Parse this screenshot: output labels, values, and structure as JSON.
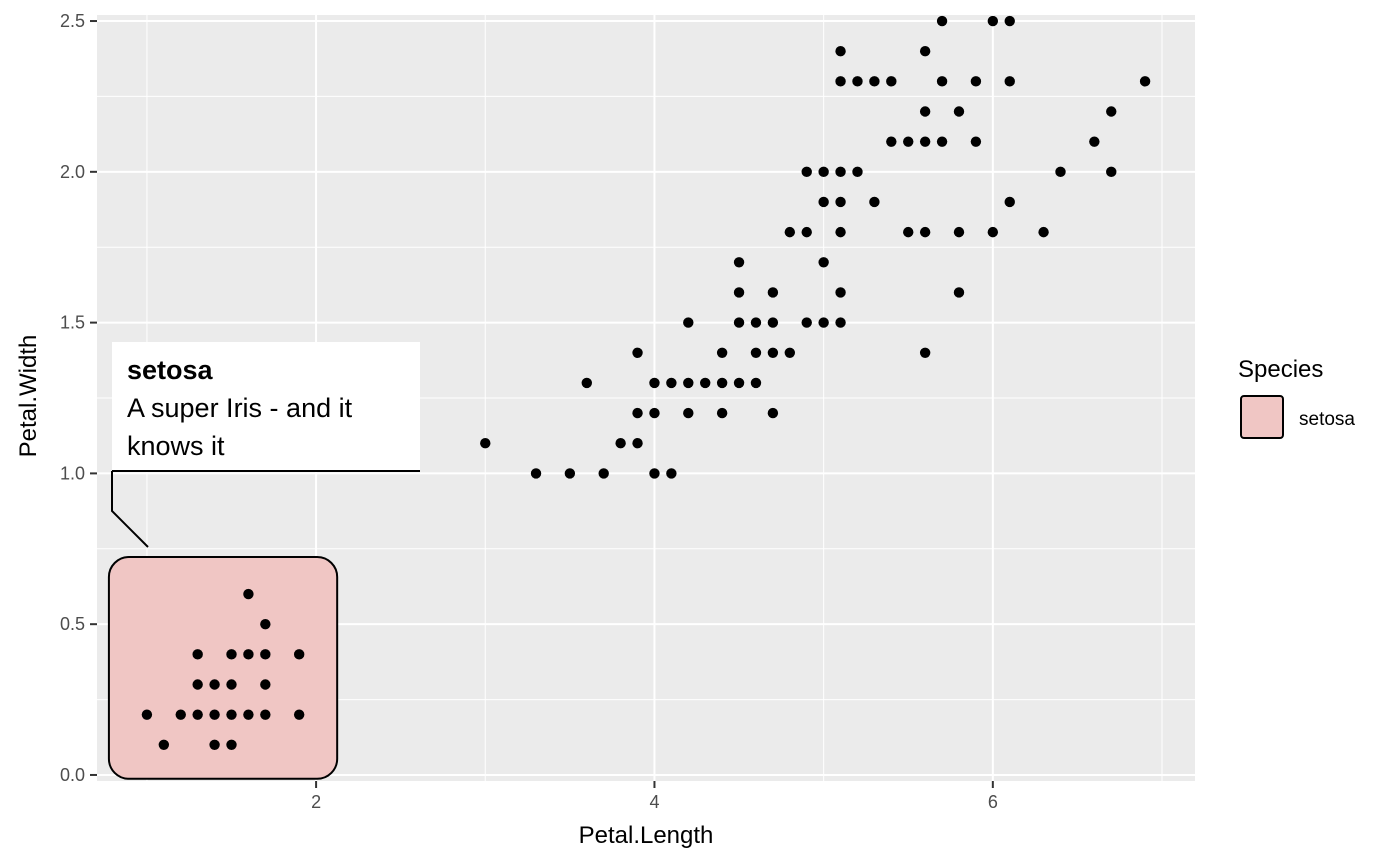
{
  "chart_data": {
    "type": "scatter",
    "xlabel": "Petal.Length",
    "ylabel": "Petal.Width",
    "xlim": [
      0.705,
      7.195
    ],
    "ylim": [
      -0.02,
      2.52
    ],
    "x_ticks": [
      2,
      4,
      6
    ],
    "x_tick_labels": [
      "2",
      "4",
      "6"
    ],
    "y_ticks": [
      0.0,
      0.5,
      1.0,
      1.5,
      2.0,
      2.5
    ],
    "y_tick_labels": [
      "0.0",
      "0.5",
      "1.0",
      "1.5",
      "2.0",
      "2.5"
    ],
    "grid": true,
    "panel_color": "#ebebeb",
    "grid_color": "#ffffff",
    "point_color": "#000000",
    "highlight_fill": "#f0c6c4",
    "legend": {
      "title": "Species",
      "placement": "right",
      "entries": [
        {
          "label": "setosa",
          "fill": "#f0c6c4"
        }
      ]
    },
    "annotation": {
      "title": "setosa",
      "lines": [
        "A super Iris - and it",
        "knows it"
      ]
    },
    "points": [
      [
        1.0,
        0.2
      ],
      [
        1.1,
        0.1
      ],
      [
        1.2,
        0.2
      ],
      [
        1.3,
        0.2
      ],
      [
        1.3,
        0.3
      ],
      [
        1.3,
        0.4
      ],
      [
        1.4,
        0.1
      ],
      [
        1.4,
        0.2
      ],
      [
        1.4,
        0.3
      ],
      [
        1.5,
        0.1
      ],
      [
        1.5,
        0.2
      ],
      [
        1.5,
        0.3
      ],
      [
        1.5,
        0.4
      ],
      [
        1.6,
        0.2
      ],
      [
        1.6,
        0.4
      ],
      [
        1.6,
        0.6
      ],
      [
        1.7,
        0.2
      ],
      [
        1.7,
        0.3
      ],
      [
        1.7,
        0.4
      ],
      [
        1.7,
        0.5
      ],
      [
        1.9,
        0.2
      ],
      [
        1.9,
        0.4
      ],
      [
        3.0,
        1.1
      ],
      [
        3.3,
        1.0
      ],
      [
        3.5,
        1.0
      ],
      [
        3.6,
        1.3
      ],
      [
        3.7,
        1.0
      ],
      [
        3.8,
        1.1
      ],
      [
        3.9,
        1.1
      ],
      [
        3.9,
        1.2
      ],
      [
        3.9,
        1.4
      ],
      [
        4.0,
        1.0
      ],
      [
        4.0,
        1.2
      ],
      [
        4.0,
        1.3
      ],
      [
        4.1,
        1.0
      ],
      [
        4.1,
        1.3
      ],
      [
        4.2,
        1.2
      ],
      [
        4.2,
        1.3
      ],
      [
        4.2,
        1.5
      ],
      [
        4.3,
        1.3
      ],
      [
        4.4,
        1.2
      ],
      [
        4.4,
        1.3
      ],
      [
        4.4,
        1.4
      ],
      [
        4.5,
        1.3
      ],
      [
        4.5,
        1.5
      ],
      [
        4.5,
        1.6
      ],
      [
        4.5,
        1.7
      ],
      [
        4.6,
        1.3
      ],
      [
        4.6,
        1.4
      ],
      [
        4.6,
        1.5
      ],
      [
        4.7,
        1.2
      ],
      [
        4.7,
        1.4
      ],
      [
        4.7,
        1.5
      ],
      [
        4.7,
        1.6
      ],
      [
        4.8,
        1.4
      ],
      [
        4.8,
        1.8
      ],
      [
        4.9,
        1.5
      ],
      [
        4.9,
        1.8
      ],
      [
        4.9,
        2.0
      ],
      [
        5.0,
        1.5
      ],
      [
        5.0,
        1.7
      ],
      [
        5.0,
        1.9
      ],
      [
        5.0,
        2.0
      ],
      [
        5.1,
        1.5
      ],
      [
        5.1,
        1.6
      ],
      [
        5.1,
        1.8
      ],
      [
        5.1,
        1.9
      ],
      [
        5.1,
        2.0
      ],
      [
        5.1,
        2.3
      ],
      [
        5.1,
        2.4
      ],
      [
        5.2,
        2.0
      ],
      [
        5.2,
        2.3
      ],
      [
        5.3,
        1.9
      ],
      [
        5.3,
        2.3
      ],
      [
        5.4,
        2.1
      ],
      [
        5.4,
        2.3
      ],
      [
        5.5,
        1.8
      ],
      [
        5.5,
        2.1
      ],
      [
        5.6,
        1.4
      ],
      [
        5.6,
        1.8
      ],
      [
        5.6,
        2.1
      ],
      [
        5.6,
        2.2
      ],
      [
        5.6,
        2.4
      ],
      [
        5.7,
        2.1
      ],
      [
        5.7,
        2.3
      ],
      [
        5.7,
        2.5
      ],
      [
        5.8,
        1.6
      ],
      [
        5.8,
        1.8
      ],
      [
        5.8,
        2.2
      ],
      [
        5.9,
        2.1
      ],
      [
        5.9,
        2.3
      ],
      [
        6.0,
        1.8
      ],
      [
        6.0,
        2.5
      ],
      [
        6.1,
        1.9
      ],
      [
        6.1,
        2.3
      ],
      [
        6.1,
        2.5
      ],
      [
        6.3,
        1.8
      ],
      [
        6.4,
        2.0
      ],
      [
        6.6,
        2.1
      ],
      [
        6.7,
        2.0
      ],
      [
        6.7,
        2.2
      ],
      [
        6.9,
        2.3
      ]
    ]
  }
}
